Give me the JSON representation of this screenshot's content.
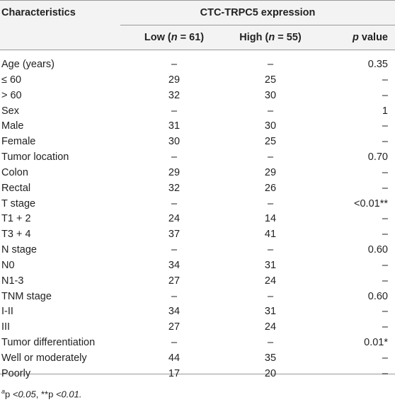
{
  "table": {
    "header": {
      "characteristics": "Characteristics",
      "group": "CTC-TRPC5 expression",
      "columns": [
        [
          "Low (",
          "n",
          " = 61)"
        ],
        [
          "High (",
          "n",
          " = 55)"
        ],
        [
          "p",
          " value"
        ]
      ]
    },
    "rows": [
      [
        "Age (years)",
        "–",
        "–",
        "0.35"
      ],
      [
        "≤ 60",
        "29",
        "25",
        "–"
      ],
      [
        "> 60",
        "32",
        "30",
        "–"
      ],
      [
        "Sex",
        "–",
        "–",
        "1"
      ],
      [
        "Male",
        "31",
        "30",
        "–"
      ],
      [
        "Female",
        "30",
        "25",
        "–"
      ],
      [
        "Tumor location",
        "–",
        "–",
        "0.70"
      ],
      [
        "Colon",
        "29",
        "29",
        "–"
      ],
      [
        "Rectal",
        "32",
        "26",
        "–"
      ],
      [
        "T stage",
        "–",
        "–",
        "<0.01**"
      ],
      [
        "T1 + 2",
        "24",
        "14",
        "–"
      ],
      [
        "T3 + 4",
        "37",
        "41",
        "–"
      ],
      [
        "N stage",
        "–",
        "–",
        "0.60"
      ],
      [
        "N0",
        "34",
        "31",
        "–"
      ],
      [
        "N1-3",
        "27",
        "24",
        "–"
      ],
      [
        "TNM stage",
        "–",
        "–",
        "0.60"
      ],
      [
        "I-II",
        "34",
        "31",
        "–"
      ],
      [
        "III",
        "27",
        "24",
        "–"
      ],
      [
        "Tumor differentiation",
        "–",
        "–",
        "0.01*"
      ],
      [
        "Well or moderately",
        "44",
        "35",
        "–"
      ],
      [
        "Poorly",
        "17",
        "20",
        "–"
      ]
    ],
    "footnote": [
      "a",
      "p ",
      "<0.05",
      ", **p ",
      "<0.01."
    ]
  }
}
